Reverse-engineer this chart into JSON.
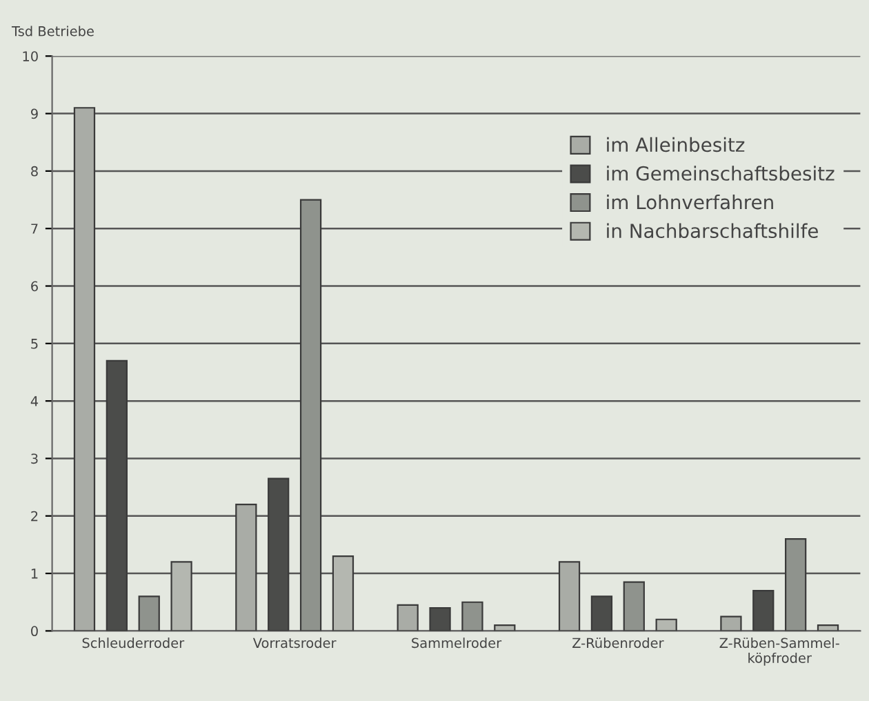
{
  "chart_data": {
    "type": "bar",
    "ylabel": "Tsd Betriebe",
    "categories": [
      "Schleuderroder",
      "Vorratsroder",
      "Sammelroder",
      "Z-Rübenroder",
      "Z-Rüben-Sammel-\nköpfroder"
    ],
    "series": [
      {
        "name": "im Alleinbesitz",
        "color": "#a9aca6",
        "values": [
          9.1,
          2.2,
          0.45,
          1.2,
          0.25
        ]
      },
      {
        "name": "im Gemeinschaftsbesitz",
        "color": "#4b4c4a",
        "values": [
          4.7,
          2.65,
          0.4,
          0.6,
          0.7
        ]
      },
      {
        "name": "im Lohnverfahren",
        "color": "#8f938d",
        "values": [
          0.6,
          7.5,
          0.5,
          0.85,
          1.6
        ]
      },
      {
        "name": "in Nachbarschaftshilfe",
        "color": "#b4b7b0",
        "values": [
          1.2,
          1.3,
          0.1,
          0.2,
          0.1
        ]
      }
    ],
    "ylim": [
      0,
      10
    ],
    "yticks": [
      0,
      1,
      2,
      3,
      4,
      5,
      6,
      7,
      8,
      9,
      10
    ],
    "grid": "y",
    "legend": "top right"
  }
}
